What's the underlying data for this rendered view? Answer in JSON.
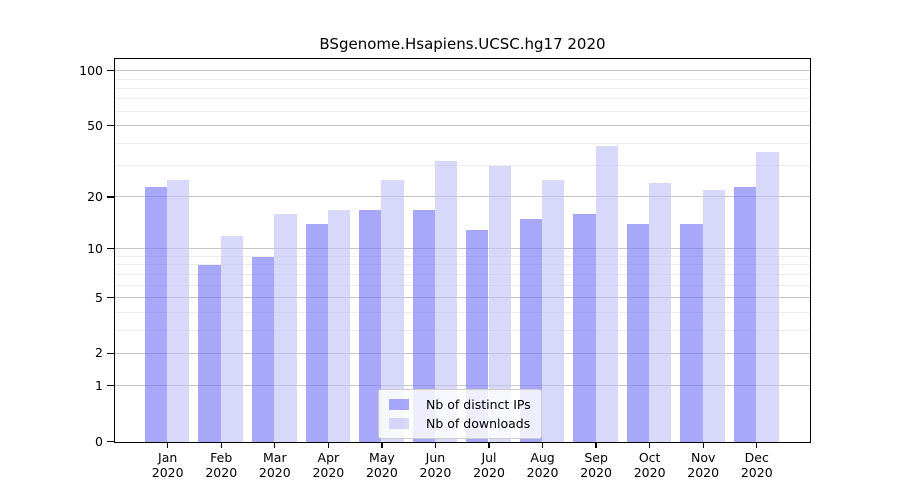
{
  "title": "BSgenome.Hsapiens.UCSC.hg17 2020",
  "chart_data": {
    "type": "bar",
    "title": "BSgenome.Hsapiens.UCSC.hg17 2020",
    "categories": [
      "Jan",
      "Feb",
      "Mar",
      "Apr",
      "May",
      "Jun",
      "Jul",
      "Aug",
      "Sep",
      "Oct",
      "Nov",
      "Dec"
    ],
    "category_year": "2020",
    "series": [
      {
        "name": "Nb of distinct IPs",
        "color": "rgba(121,121,247,0.65)",
        "values": [
          23,
          8,
          9,
          14,
          17,
          17,
          13,
          15,
          16,
          14,
          14,
          23
        ]
      },
      {
        "name": "Nb of downloads",
        "color": "rgba(195,195,247,0.65)",
        "values": [
          25,
          12,
          16,
          17,
          25,
          32,
          30,
          25,
          39,
          24,
          22,
          36
        ]
      }
    ],
    "xlabel": "",
    "ylabel": "",
    "yscale": "log1p",
    "ylim": [
      0,
      115
    ],
    "yticks_major": [
      0,
      1,
      2,
      5,
      10,
      20,
      50,
      100
    ],
    "yticks_minor": [
      3,
      4,
      6,
      7,
      8,
      9,
      30,
      40,
      60,
      70,
      80,
      90
    ],
    "grid": true,
    "legend_position": "lower center"
  }
}
